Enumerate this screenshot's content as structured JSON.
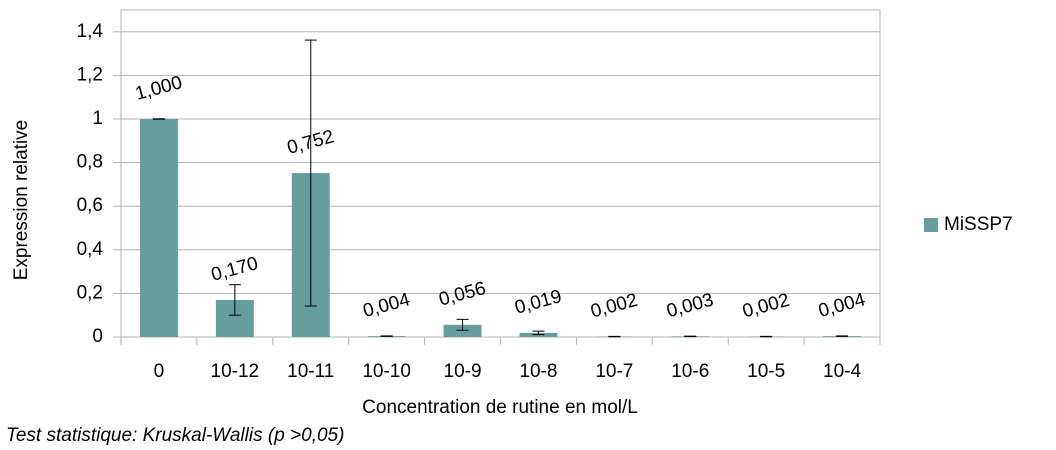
{
  "chart_data": {
    "type": "bar",
    "xlabel": "Concentration de rutine en mol/L",
    "ylabel": "Expression relative",
    "note": "Test statistique: Kruskal-Wallis (p >0,05)",
    "categories": [
      "0",
      "10-12",
      "10-11",
      "10-10",
      "10-9",
      "10-8",
      "10-7",
      "10-6",
      "10-5",
      "10-4"
    ],
    "series": [
      {
        "name": "MiSSP7",
        "color": "#669e9e",
        "values": [
          1,
          0.17,
          0.752,
          0.004,
          0.056,
          0.019,
          0.002,
          0.003,
          0.002,
          0.004
        ],
        "value_labels": [
          "1,000",
          "0,170",
          "0,752",
          "0,004",
          "0,056",
          "0,019",
          "0,002",
          "0,003",
          "0,002",
          "0,004"
        ],
        "errors": [
          0.001,
          0.07,
          0.61,
          0.001,
          0.025,
          0.008,
          0.001,
          0.001,
          0.001,
          0.001
        ]
      }
    ],
    "ylim": [
      0,
      1.5
    ],
    "yticks": [
      0,
      {
        "value": 0.2,
        "label": "0,2"
      },
      {
        "value": 0.4,
        "label": "0,4"
      },
      {
        "value": 0.6,
        "label": "0,6"
      },
      {
        "value": 0.8,
        "label": "0,8"
      },
      1,
      {
        "value": 1.2,
        "label": "1,2"
      },
      {
        "value": 1.4,
        "label": "1,4"
      }
    ],
    "grid": true,
    "legend": "right"
  }
}
